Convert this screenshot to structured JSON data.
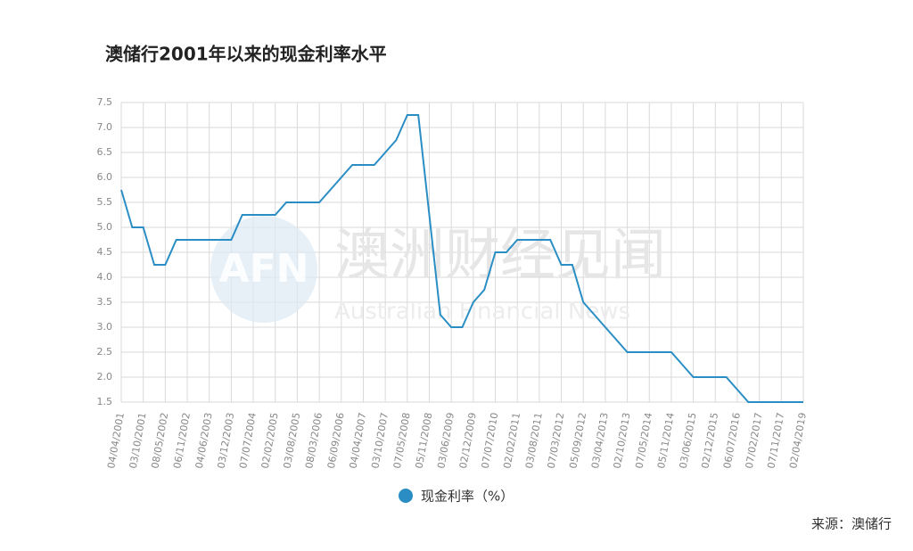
{
  "chart_data": {
    "type": "line",
    "title": "澳储行2001年以来的现金利率水平",
    "categories": [
      "04/04/2001",
      null,
      "03/10/2001",
      null,
      "08/05/2002",
      null,
      "06/11/2002",
      null,
      "04/06/2003",
      null,
      "03/12/2003",
      null,
      "07/07/2004",
      null,
      "02/02/2005",
      null,
      "03/08/2005",
      null,
      "08/03/2006",
      null,
      "06/09/2006",
      null,
      "04/04/2007",
      null,
      "03/10/2007",
      null,
      "07/05/2008",
      null,
      "05/11/2008",
      null,
      "03/06/2009",
      null,
      "02/12/2009",
      null,
      "07/07/2010",
      null,
      "02/02/2011",
      null,
      "03/08/2011",
      null,
      "07/03/2012",
      null,
      "05/09/2012",
      null,
      "03/04/2013",
      null,
      "02/10/2013",
      null,
      "07/05/2014",
      null,
      "05/11/2014",
      null,
      "03/06/2015",
      null,
      "02/12/2015",
      null,
      "06/07/2016",
      null,
      "07/02/2017",
      null,
      "07/11/2017",
      null,
      "02/04/2019"
    ],
    "series": [
      {
        "name": "现金利率（%）",
        "color": "#2a8ec4",
        "values": [
          5.75,
          5.0,
          5.0,
          4.25,
          4.25,
          4.75,
          4.75,
          4.75,
          4.75,
          4.75,
          4.75,
          5.25,
          5.25,
          5.25,
          5.25,
          5.5,
          5.5,
          5.5,
          5.5,
          5.75,
          6.0,
          6.25,
          6.25,
          6.25,
          6.5,
          6.75,
          7.25,
          7.25,
          5.25,
          3.25,
          3.0,
          3.0,
          3.5,
          3.75,
          4.5,
          4.5,
          4.75,
          4.75,
          4.75,
          4.75,
          4.25,
          4.25,
          3.5,
          3.25,
          3.0,
          2.75,
          2.5,
          2.5,
          2.5,
          2.5,
          2.5,
          2.25,
          2.0,
          2.0,
          2.0,
          2.0,
          1.75,
          1.5,
          1.5,
          1.5,
          1.5,
          1.5,
          1.5
        ]
      }
    ],
    "ylim": [
      1.5,
      7.5
    ],
    "yticks": [
      1.5,
      {
        "value": 2,
        "label": "2.0"
      },
      2.5,
      {
        "value": 3,
        "label": "3.0"
      },
      3.5,
      {
        "value": 4,
        "label": "4.0"
      },
      4.5,
      {
        "value": 5,
        "label": "5.0"
      },
      5.5,
      {
        "value": 6,
        "label": "6.0"
      },
      6.5,
      {
        "value": 7,
        "label": "7.0"
      },
      7.5
    ],
    "grid": true,
    "watermark": "澳洲财经见闻",
    "watermark_sub": "Australian Financial News",
    "watermark_logo": "AFN",
    "source": "来源：澳储行"
  }
}
